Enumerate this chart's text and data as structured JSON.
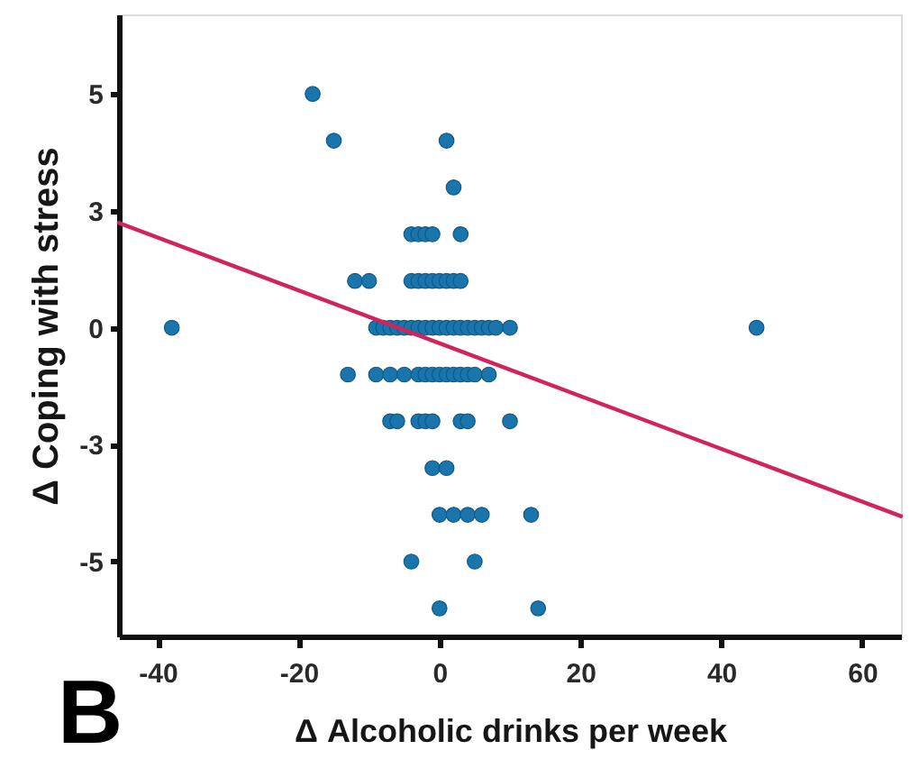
{
  "chart_data": {
    "type": "scatter",
    "xlabel": "Δ Alcoholic drinks per week",
    "ylabel": "Δ Coping with stress",
    "annotations": [
      "B"
    ],
    "xlim": [
      -45.5,
      65.5
    ],
    "ylim": [
      -6.6,
      6.7
    ],
    "xticks": [
      -40,
      -20,
      0,
      20,
      40,
      60
    ],
    "yticks": [
      -5,
      {
        "value": -2.5,
        "label": "-3"
      },
      0,
      {
        "value": 2.5,
        "label": "3"
      },
      5
    ],
    "grid": false,
    "series": [
      {
        "color": "#1a75ad",
        "marker": "circle",
        "x": [
          -18,
          -15,
          1,
          2,
          -4,
          -3,
          -2,
          -1,
          3,
          -12,
          -10,
          -4,
          -3,
          -2,
          -1,
          0,
          1,
          2,
          3,
          -38,
          -9,
          -8,
          -7,
          -6,
          -5,
          -4,
          -3,
          -2,
          -1,
          0,
          1,
          2,
          3,
          4,
          5,
          6,
          7,
          8,
          10,
          45,
          -13,
          -9,
          -7,
          -5,
          -3,
          -2,
          -1,
          0,
          1,
          2,
          3,
          4,
          5,
          7,
          -7,
          -6,
          -3,
          -2,
          -1,
          3,
          4,
          10,
          -1,
          1,
          0,
          2,
          4,
          6,
          13,
          -4,
          5,
          0,
          14
        ],
        "values": [
          5,
          4,
          4,
          3,
          2,
          2,
          2,
          2,
          2,
          1,
          1,
          1,
          1,
          1,
          1,
          1,
          1,
          1,
          1,
          0,
          0,
          0,
          0,
          0,
          0,
          0,
          0,
          0,
          0,
          0,
          0,
          0,
          0,
          0,
          0,
          0,
          0,
          0,
          0,
          0,
          -1,
          -1,
          -1,
          -1,
          -1,
          -1,
          -1,
          -1,
          -1,
          -1,
          -1,
          -1,
          -1,
          -1,
          -2,
          -2,
          -2,
          -2,
          -2,
          -2,
          -2,
          -2,
          -3,
          -3,
          -4,
          -4,
          -4,
          -4,
          -4,
          -5,
          -5,
          -6,
          -6
        ]
      },
      {
        "type": "line",
        "color": "#d0245a",
        "x": [
          -45.5,
          65.5
        ],
        "values": [
          2.24,
          -4.03
        ]
      }
    ]
  }
}
